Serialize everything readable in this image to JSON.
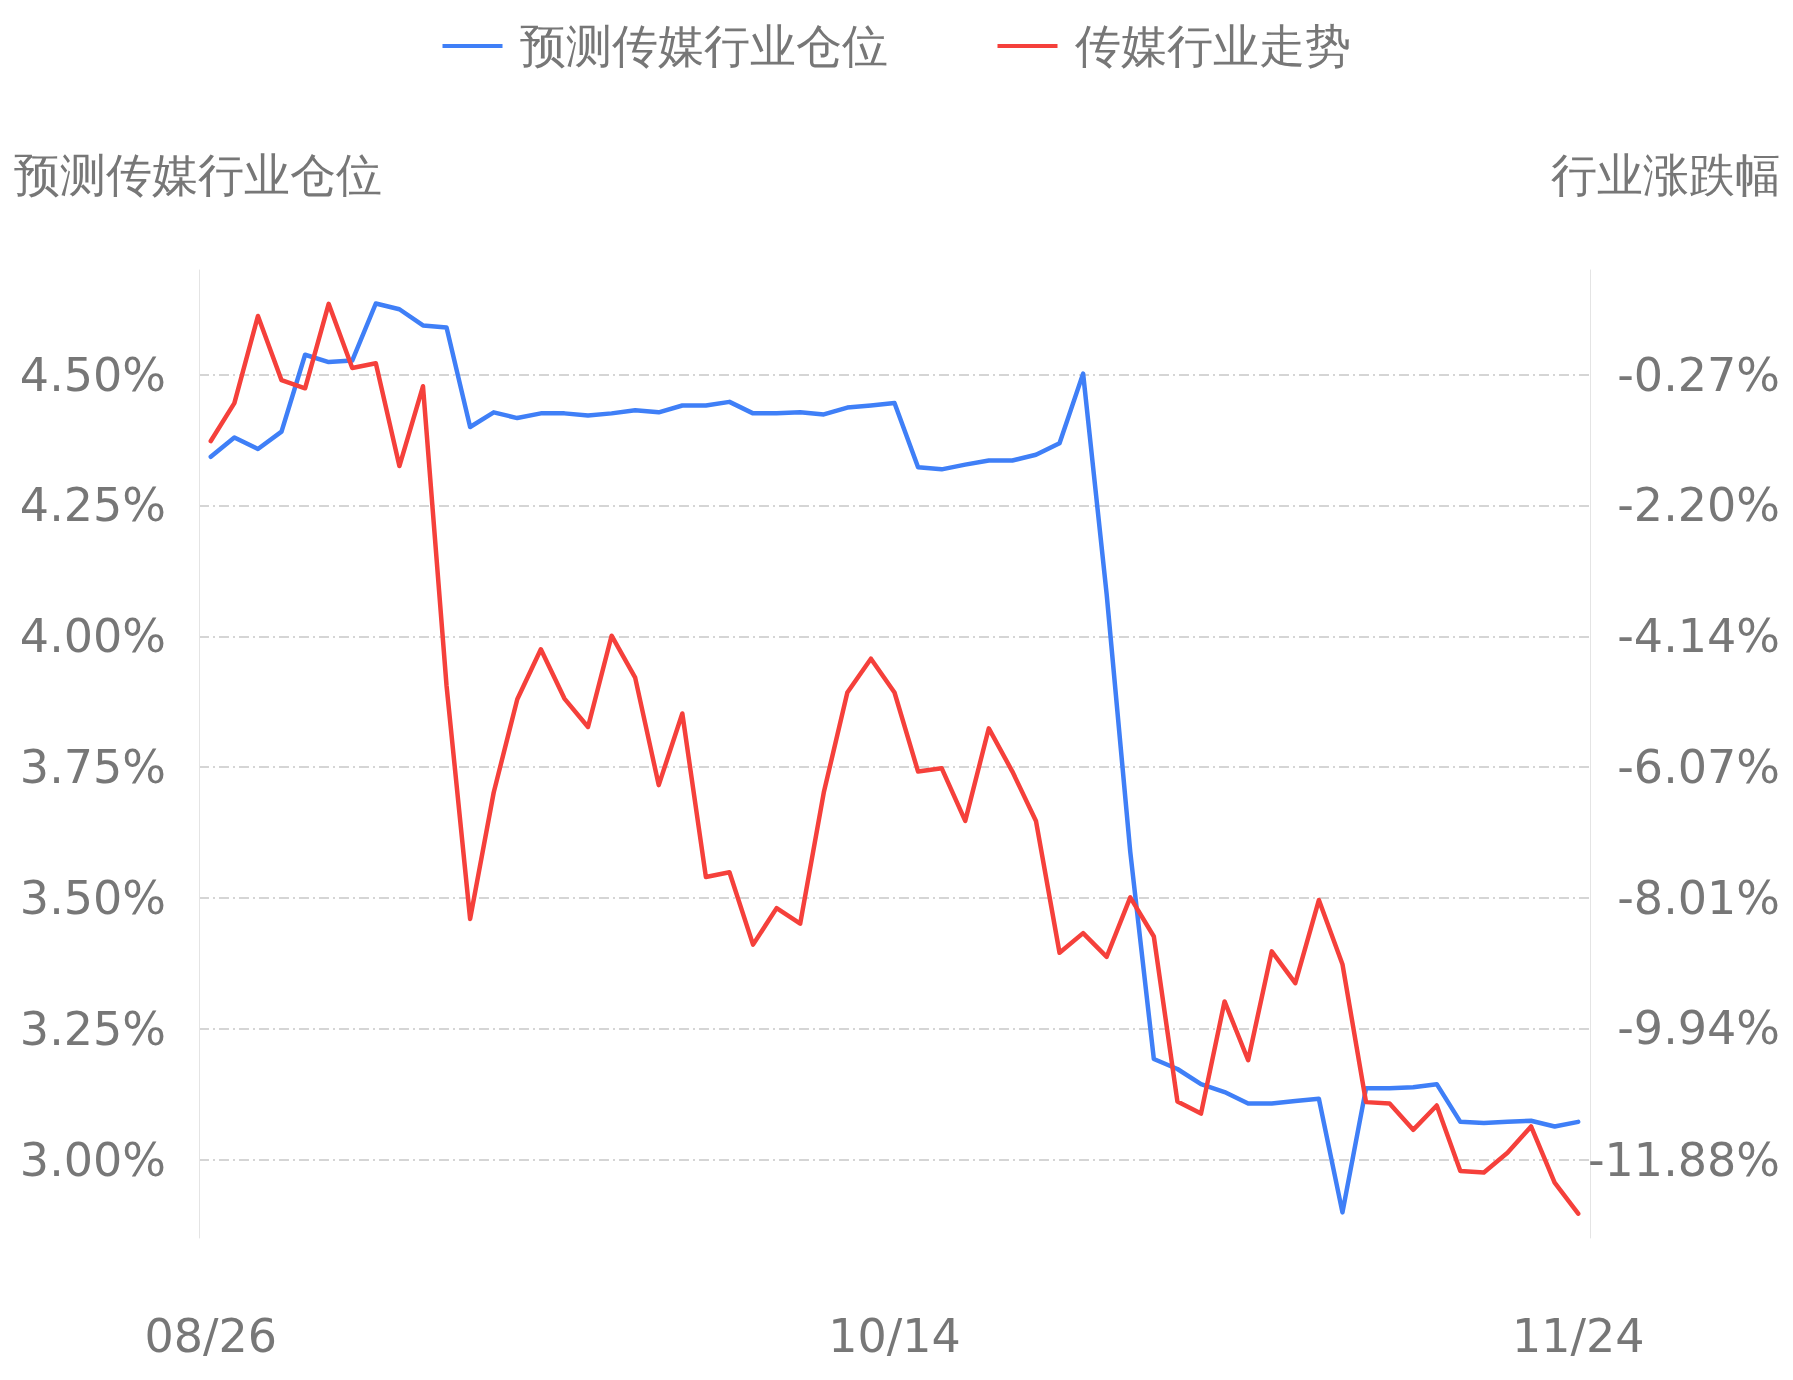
{
  "chart_data": {
    "type": "line",
    "ylabel": "预测传媒行业仓位",
    "y2label": "行业涨跌幅",
    "categories": [
      "08/26",
      null,
      null,
      null,
      null,
      null,
      null,
      null,
      null,
      null,
      null,
      null,
      null,
      null,
      null,
      null,
      null,
      null,
      null,
      null,
      null,
      null,
      null,
      null,
      null,
      null,
      null,
      null,
      null,
      "10/14",
      null,
      null,
      null,
      null,
      null,
      null,
      null,
      null,
      null,
      null,
      null,
      null,
      null,
      null,
      null,
      null,
      null,
      null,
      null,
      null,
      null,
      null,
      null,
      null,
      null,
      null,
      null,
      null,
      "11/24"
    ],
    "series": [
      {
        "name": "预测传媒行业仓位",
        "color": "#3f7ff7",
        "values": [
          4.343,
          4.38,
          4.358,
          4.391,
          4.538,
          4.524,
          4.527,
          4.636,
          4.625,
          4.594,
          4.59,
          4.4,
          4.428,
          4.417,
          4.426,
          4.426,
          4.422,
          4.426,
          4.432,
          4.428,
          4.441,
          4.441,
          4.448,
          4.426,
          4.426,
          4.428,
          4.424,
          4.437,
          4.441,
          4.446,
          4.323,
          4.319,
          4.328,
          4.336,
          4.336,
          4.347,
          4.369,
          4.502,
          4.08,
          3.588,
          3.192,
          3.173,
          3.144,
          3.129,
          3.107,
          3.107,
          3.112,
          3.116,
          2.899,
          3.136,
          3.136,
          3.138,
          3.144,
          3.072,
          3.07,
          3.072,
          3.074,
          3.063,
          3.072
        ]
      },
      {
        "name": "传媒行业走势",
        "color": "#f5403b",
        "axis": "y2",
        "values": [
          -1.25,
          -0.69,
          0.6,
          -0.35,
          -0.47,
          0.78,
          -0.17,
          -0.1,
          -1.62,
          -0.44,
          -4.87,
          -8.32,
          -6.45,
          -5.07,
          -4.33,
          -5.06,
          -5.48,
          -4.13,
          -4.75,
          -6.34,
          -5.28,
          -7.7,
          -7.63,
          -8.7,
          -8.16,
          -8.39,
          -6.45,
          -4.97,
          -4.47,
          -4.97,
          -6.14,
          -6.09,
          -6.87,
          -5.5,
          -6.14,
          -6.87,
          -8.82,
          -8.53,
          -8.88,
          -8.0,
          -8.58,
          -11.02,
          -11.2,
          -9.54,
          -10.41,
          -8.8,
          -9.27,
          -8.04,
          -8.99,
          -11.03,
          -11.05,
          -11.44,
          -11.08,
          -12.05,
          -12.07,
          -11.78,
          -11.39,
          -12.22,
          -12.68
        ]
      }
    ],
    "ylim": [
      2.85,
      4.7
    ],
    "yticks": [
      {
        "value": 3.0,
        "label": "3.00%"
      },
      {
        "value": 3.25,
        "label": "3.25%"
      },
      {
        "value": 3.5,
        "label": "3.50%"
      },
      {
        "value": 3.75,
        "label": "3.75%"
      },
      {
        "value": 4.0,
        "label": "4.00%"
      },
      {
        "value": 4.25,
        "label": "4.25%"
      },
      {
        "value": 4.5,
        "label": "4.50%"
      }
    ],
    "y2lim": [
      -13.04,
      1.28
    ],
    "y2ticks": [
      {
        "value": -11.88,
        "label": "-11.88%"
      },
      {
        "value": -9.94,
        "label": "-9.94%"
      },
      {
        "value": -8.01,
        "label": "-8.01%"
      },
      {
        "value": -6.07,
        "label": "-6.07%"
      },
      {
        "value": -4.14,
        "label": "-4.14%"
      },
      {
        "value": -2.2,
        "label": "-2.20%"
      },
      {
        "value": -0.27,
        "label": "-0.27%"
      }
    ],
    "grid": "y",
    "legend": "top",
    "marker": "none",
    "line_style": "solid"
  }
}
